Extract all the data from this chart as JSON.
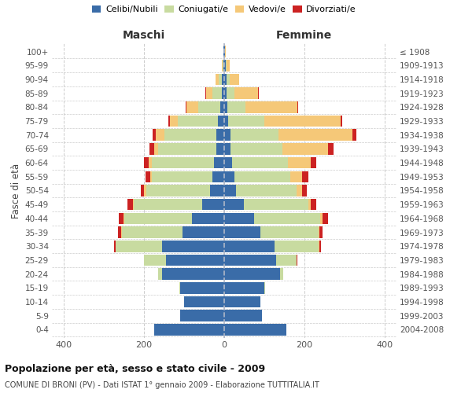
{
  "age_groups": [
    "0-4",
    "5-9",
    "10-14",
    "15-19",
    "20-24",
    "25-29",
    "30-34",
    "35-39",
    "40-44",
    "45-49",
    "50-54",
    "55-59",
    "60-64",
    "65-69",
    "70-74",
    "75-79",
    "80-84",
    "85-89",
    "90-94",
    "95-99",
    "100+"
  ],
  "birth_years": [
    "2004-2008",
    "1999-2003",
    "1994-1998",
    "1989-1993",
    "1984-1988",
    "1979-1983",
    "1974-1978",
    "1969-1973",
    "1964-1968",
    "1959-1963",
    "1954-1958",
    "1949-1953",
    "1944-1948",
    "1939-1943",
    "1934-1938",
    "1929-1933",
    "1924-1928",
    "1919-1923",
    "1914-1918",
    "1909-1913",
    "≤ 1908"
  ],
  "maschi": {
    "celibi": [
      175,
      110,
      100,
      110,
      155,
      145,
      155,
      105,
      80,
      55,
      35,
      30,
      25,
      20,
      20,
      15,
      10,
      5,
      5,
      2,
      1
    ],
    "coniugati": [
      0,
      0,
      0,
      2,
      10,
      55,
      115,
      150,
      170,
      170,
      160,
      150,
      155,
      145,
      130,
      100,
      55,
      25,
      8,
      2,
      0
    ],
    "vedovi": [
      0,
      0,
      0,
      0,
      0,
      0,
      0,
      2,
      2,
      2,
      5,
      5,
      8,
      10,
      20,
      20,
      30,
      15,
      8,
      2,
      0
    ],
    "divorziati": [
      0,
      0,
      0,
      0,
      0,
      0,
      5,
      8,
      12,
      15,
      8,
      12,
      12,
      12,
      8,
      5,
      2,
      2,
      0,
      0,
      0
    ]
  },
  "femmine": {
    "nubili": [
      155,
      95,
      90,
      100,
      140,
      130,
      125,
      90,
      75,
      50,
      30,
      25,
      20,
      15,
      15,
      10,
      8,
      5,
      5,
      3,
      1
    ],
    "coniugate": [
      0,
      0,
      0,
      2,
      8,
      50,
      110,
      145,
      165,
      160,
      150,
      140,
      140,
      130,
      120,
      90,
      45,
      20,
      8,
      2,
      0
    ],
    "vedove": [
      0,
      0,
      0,
      0,
      0,
      0,
      2,
      2,
      5,
      5,
      15,
      30,
      55,
      115,
      185,
      190,
      130,
      60,
      25,
      8,
      2
    ],
    "divorziate": [
      0,
      0,
      0,
      0,
      0,
      2,
      5,
      8,
      15,
      15,
      12,
      15,
      15,
      12,
      10,
      5,
      2,
      2,
      0,
      0,
      0
    ]
  },
  "colors": {
    "celibi": "#3a6ca8",
    "coniugati": "#c8dba0",
    "vedovi": "#f5c878",
    "divorziati": "#cc2222"
  },
  "title": "Popolazione per età, sesso e stato civile - 2009",
  "subtitle": "COMUNE DI BRONI (PV) - Dati ISTAT 1° gennaio 2009 - Elaborazione TUTTITALIA.IT",
  "xlabel_left": "Maschi",
  "xlabel_right": "Femmine",
  "ylabel_left": "Fasce di età",
  "legend_labels": [
    "Celibi/Nubili",
    "Coniugati/e",
    "Vedovi/e",
    "Divorziati/e"
  ],
  "xlim": 430,
  "background_color": "#ffffff"
}
